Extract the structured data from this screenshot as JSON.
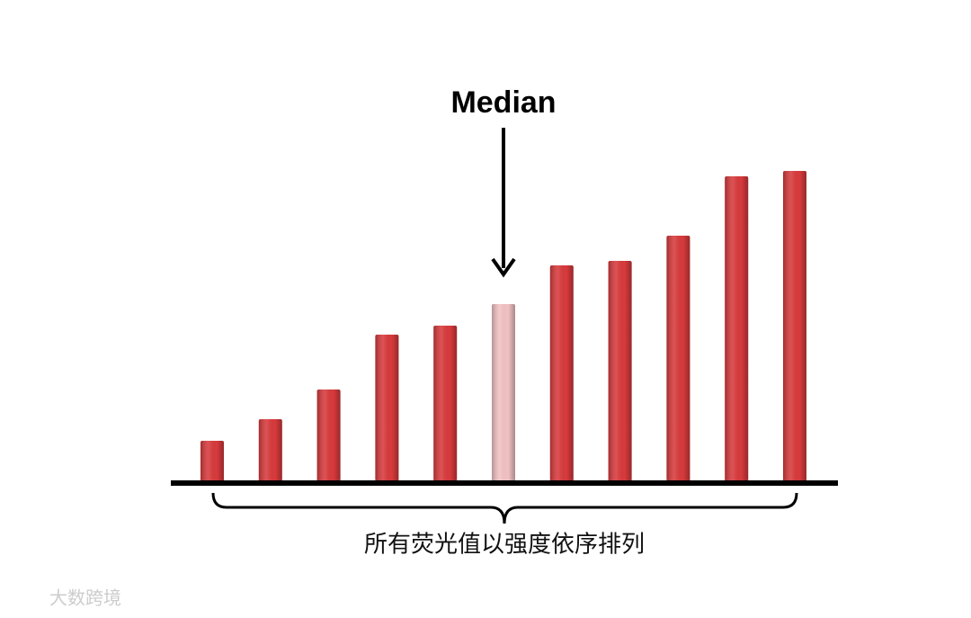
{
  "chart_data": {
    "type": "bar",
    "annotation": "Median",
    "xlabel": "所有荧光值以强度依序排列",
    "watermark": "大数跨境",
    "values": [
      45,
      69,
      102,
      163,
      173,
      197,
      240,
      245,
      273,
      339,
      345
    ],
    "colors": [
      "#d83a3c",
      "#d83a3c",
      "#d83a3c",
      "#d83a3c",
      "#d83a3c",
      "#f3c2c3",
      "#d83a3c",
      "#d83a3c",
      "#d83a3c",
      "#d83a3c",
      "#d83a3c"
    ]
  }
}
